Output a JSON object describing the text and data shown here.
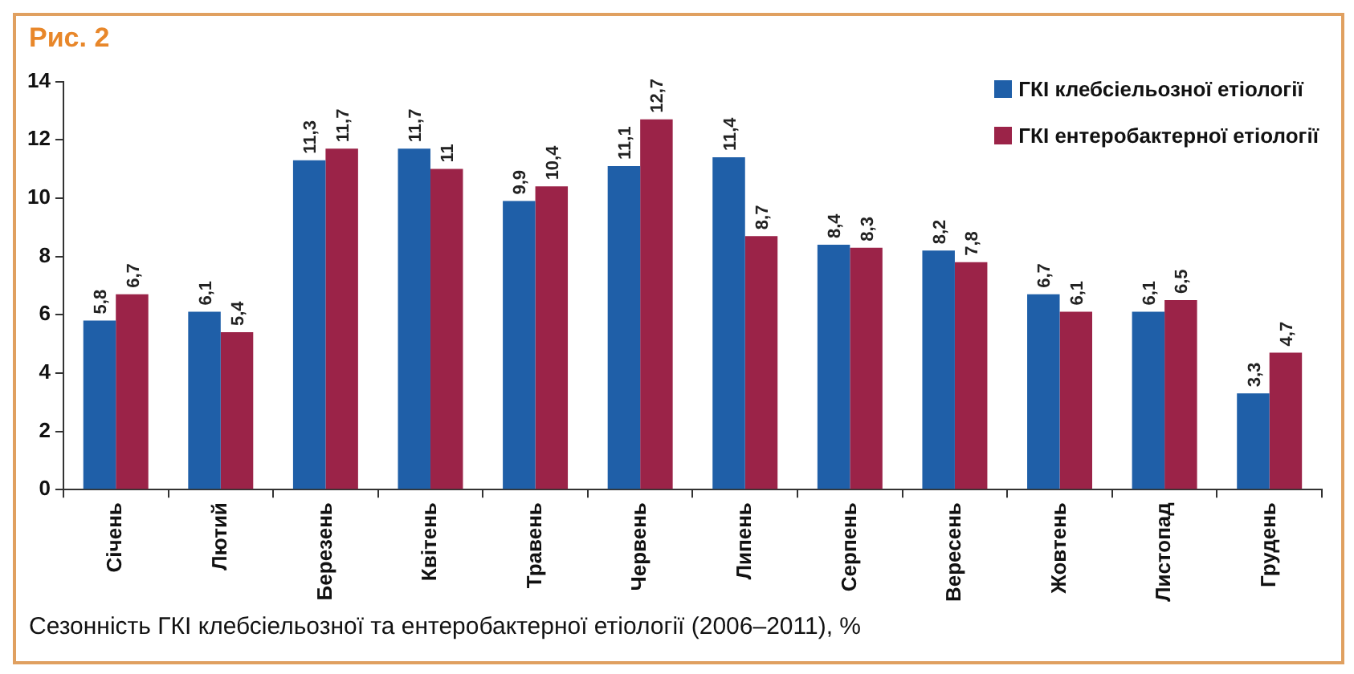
{
  "chart_data": {
    "type": "bar",
    "title": "Рис. 2",
    "categories": [
      "Січень",
      "Лютий",
      "Березень",
      "Квітень",
      "Травень",
      "Червень",
      "Липень",
      "Серпень",
      "Вересень",
      "Жовтень",
      "Листопад",
      "Грудень"
    ],
    "series": [
      {
        "name": "ГКІ клебсіельозної етіології",
        "color": "#1f5fa8",
        "values": [
          5.8,
          6.1,
          11.3,
          11.7,
          9.9,
          11.1,
          11.4,
          8.4,
          8.2,
          6.7,
          6.1,
          3.3
        ],
        "value_labels": [
          "5,8",
          "6,1",
          "11,3",
          "11,7",
          "9,9",
          "11,1",
          "11,4",
          "8,4",
          "8,2",
          "6,7",
          "6,1",
          "3,3"
        ]
      },
      {
        "name": "ГКІ ентеробактерної етіології",
        "color": "#9b2348",
        "values": [
          6.7,
          5.4,
          11.7,
          11,
          10.4,
          12.7,
          8.7,
          8.3,
          7.8,
          6.1,
          6.5,
          4.7
        ],
        "value_labels": [
          "6,7",
          "5,4",
          "11,7",
          "11",
          "10,4",
          "12,7",
          "8,7",
          "8,3",
          "7,8",
          "6,1",
          "6,5",
          "4,7"
        ]
      }
    ],
    "ylim": [
      0,
      14
    ],
    "yticks": [
      0,
      2,
      4,
      6,
      8,
      10,
      12,
      14
    ],
    "grid": false,
    "legend": "top right",
    "annotations": [
      "Сезонність ГКІ клебсіельозної та ентеробактерної етіології (2006–2011), %"
    ]
  }
}
